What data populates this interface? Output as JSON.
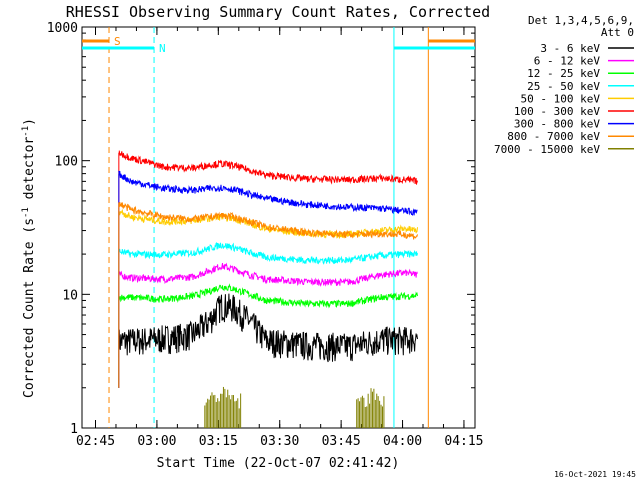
{
  "chart_data": {
    "type": "line",
    "title": "RHESSI Observing Summary Count Rates, Corrected",
    "xlabel": "Start Time (22-Oct-07 02:41:42)",
    "ylabel_main": "Corrected Count Rate (s",
    "ylabel_sup1": "-1",
    "ylabel_mid": " detector",
    "ylabel_sup2": "-1",
    "ylabel_end": ")",
    "yscale": "log",
    "ylim": [
      1,
      1000
    ],
    "xlim_minutes_after_0241": [
      0,
      96
    ],
    "x_ticks": [
      {
        "label": "02:45",
        "minute": 3.3
      },
      {
        "label": "03:00",
        "minute": 18.3
      },
      {
        "label": "03:15",
        "minute": 33.3
      },
      {
        "label": "03:30",
        "minute": 48.3
      },
      {
        "label": "03:45",
        "minute": 63.3
      },
      {
        "label": "04:00",
        "minute": 78.3
      },
      {
        "label": "04:15",
        "minute": 93.3
      }
    ],
    "y_ticks": [
      {
        "label": "1",
        "value": 1
      },
      {
        "label": "10",
        "value": 10
      },
      {
        "label": "100",
        "value": 100
      },
      {
        "label": "1000",
        "value": 1000
      }
    ],
    "legend_header": [
      "Det 1,3,4,5,6,9,",
      "Att 0"
    ],
    "legend_placement": "right",
    "series": [
      {
        "name": "3 - 6 keV",
        "color": "#000000",
        "x": [
          9,
          12,
          20,
          27,
          31,
          34,
          37,
          41,
          45,
          55,
          65,
          73,
          79,
          82
        ],
        "y": [
          4.5,
          4.5,
          4.7,
          5,
          6.3,
          8.3,
          8,
          6.3,
          4.5,
          4.2,
          4.1,
          4.6,
          4.6,
          4.8
        ]
      },
      {
        "name": "6 - 12 keV",
        "color": "#ff00ff",
        "x": [
          9,
          12,
          20,
          27,
          31,
          34,
          37,
          41,
          45,
          55,
          65,
          73,
          79,
          82
        ],
        "y": [
          14,
          13.3,
          13,
          13.5,
          15,
          16.3,
          15.5,
          14,
          13,
          12.4,
          12.3,
          14,
          14.5,
          14
        ]
      },
      {
        "name": "12 - 25 keV",
        "color": "#00ff00",
        "x": [
          9,
          12,
          20,
          27,
          31,
          34,
          37,
          41,
          45,
          55,
          65,
          73,
          79,
          82
        ],
        "y": [
          9.5,
          9.5,
          9.2,
          9.7,
          10.5,
          11.5,
          11,
          10,
          9,
          8.5,
          8.5,
          9.5,
          9.7,
          9.8
        ]
      },
      {
        "name": "25 - 50 keV",
        "color": "#00ffff",
        "x": [
          9,
          12,
          20,
          27,
          31,
          34,
          37,
          41,
          45,
          55,
          65,
          73,
          79,
          82
        ],
        "y": [
          21,
          20,
          19.8,
          20.5,
          22,
          23.5,
          22.5,
          20.5,
          19,
          18,
          18,
          19.5,
          20,
          20
        ]
      },
      {
        "name": "50 - 100 keV",
        "color": "#ffcc00",
        "x": [
          9,
          12,
          20,
          27,
          31,
          34,
          37,
          41,
          45,
          55,
          65,
          73,
          79,
          82
        ],
        "y": [
          42,
          38,
          35,
          35.5,
          37,
          38,
          37,
          34,
          31,
          28.5,
          28,
          30,
          31,
          30
        ]
      },
      {
        "name": "100 - 300 keV",
        "color": "#ff0000",
        "x": [
          9,
          12,
          20,
          27,
          31,
          34,
          37,
          41,
          45,
          55,
          65,
          73,
          79,
          82
        ],
        "y": [
          115,
          105,
          90,
          88,
          93,
          95,
          92,
          85,
          78,
          73,
          72,
          74,
          72,
          70
        ]
      },
      {
        "name": "300 - 800 keV",
        "color": "#0000ff",
        "x": [
          9,
          12,
          20,
          27,
          31,
          34,
          37,
          41,
          45,
          55,
          65,
          73,
          79,
          82
        ],
        "y": [
          80,
          70,
          62,
          60,
          62,
          63,
          61,
          56,
          52,
          47,
          45,
          44,
          42,
          41
        ]
      },
      {
        "name": "800 - 7000 keV",
        "color": "#ff8800",
        "x": [
          9,
          12,
          20,
          27,
          31,
          34,
          37,
          41,
          45,
          55,
          65,
          73,
          79,
          82
        ],
        "y": [
          48,
          43,
          38,
          36.5,
          38,
          39,
          38,
          35,
          32,
          29,
          28,
          28.5,
          28,
          27
        ]
      },
      {
        "name": "7000 - 15000 keV",
        "color": "#808000",
        "x": [
          30,
          32,
          34,
          36,
          38,
          68,
          70,
          72,
          74
        ],
        "y": [
          1.6,
          1.7,
          1.8,
          1.7,
          1.6,
          1.6,
          1.7,
          1.8,
          1.6
        ]
      }
    ],
    "annotations": [
      {
        "label": "S",
        "color": "#ff8800",
        "minute_start": 6.6,
        "minute_end": 84.6
      },
      {
        "label": "N",
        "color": "#00ffff",
        "minute_start": 17.6,
        "minute_end": 76.2
      }
    ]
  },
  "footer_timestamp": "16-Oct-2021 19:45"
}
